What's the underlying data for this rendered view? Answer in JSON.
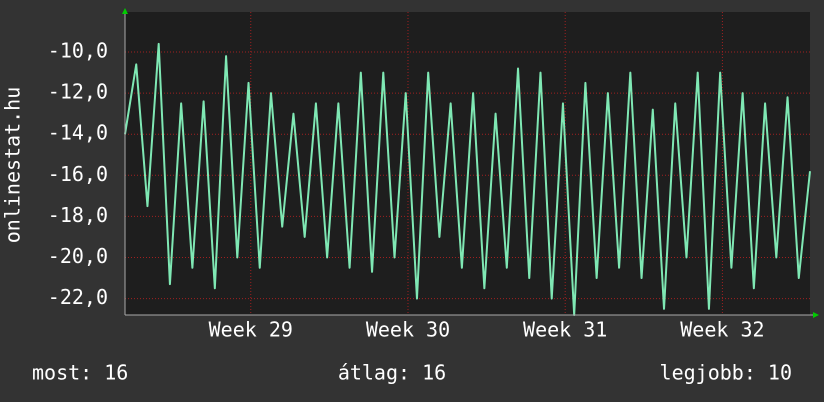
{
  "chart_data": {
    "type": "line",
    "y_label": "onlinestat.hu",
    "x": [
      0,
      0.5,
      1,
      1.5,
      2,
      2.5,
      3,
      3.5,
      4,
      4.5,
      5,
      5.5,
      6,
      6.5,
      7,
      7.5,
      8,
      8.5,
      9,
      9.5,
      10,
      10.5,
      11,
      11.5,
      12,
      12.5,
      13,
      13.5,
      14,
      14.5,
      15,
      15.5,
      16,
      16.5,
      17,
      17.5,
      18,
      18.5,
      19,
      19.5,
      20,
      20.5,
      21,
      21.5,
      22,
      22.5,
      23,
      23.5,
      24,
      24.5,
      25,
      25.5,
      26,
      26.5,
      27,
      27.5,
      28,
      28.5,
      29,
      29.5,
      30,
      30.5
    ],
    "series": [
      {
        "color": "#7fe8b4",
        "values": [
          -14.0,
          -10.6,
          -17.5,
          -9.6,
          -21.3,
          -12.5,
          -20.5,
          -12.4,
          -21.5,
          -10.2,
          -20.0,
          -11.5,
          -20.5,
          -12.0,
          -18.5,
          -13.0,
          -19.0,
          -12.5,
          -20.0,
          -12.5,
          -20.5,
          -11.0,
          -20.7,
          -11.0,
          -20.0,
          -12.0,
          -22.0,
          -11.0,
          -19.0,
          -12.5,
          -20.5,
          -12.0,
          -21.5,
          -13.0,
          -20.5,
          -10.8,
          -21.0,
          -11.0,
          -22.0,
          -12.5,
          -22.8,
          -11.5,
          -21.0,
          -12.0,
          -20.5,
          -11.0,
          -21.0,
          -12.8,
          -22.5,
          -12.5,
          -20.0,
          -11.0,
          -22.5,
          -11.0,
          -20.5,
          -12.0,
          -21.5,
          -12.5,
          -20.0,
          -12.2,
          -21.0,
          -15.8
        ]
      }
    ],
    "xlim": [
      0,
      30.5
    ],
    "xticks": [
      {
        "value": 5.6,
        "label": "Week 29"
      },
      {
        "value": 12.6,
        "label": "Week 30"
      },
      {
        "value": 19.6,
        "label": "Week 31"
      },
      {
        "value": 26.6,
        "label": "Week 32"
      }
    ],
    "ylim": [
      -22.8,
      -8.05
    ],
    "yticks": [
      {
        "value": -10,
        "label": "-10,0"
      },
      {
        "value": -12,
        "label": "-12,0"
      },
      {
        "value": -14,
        "label": "-14,0"
      },
      {
        "value": -16,
        "label": "-16,0"
      },
      {
        "value": -18,
        "label": "-18,0"
      },
      {
        "value": -20,
        "label": "-20,0"
      },
      {
        "value": -22,
        "label": "-22,0"
      }
    ],
    "grid": true,
    "footer": [
      "most: 16",
      "átlag: 16",
      "legjobb: 10"
    ]
  }
}
